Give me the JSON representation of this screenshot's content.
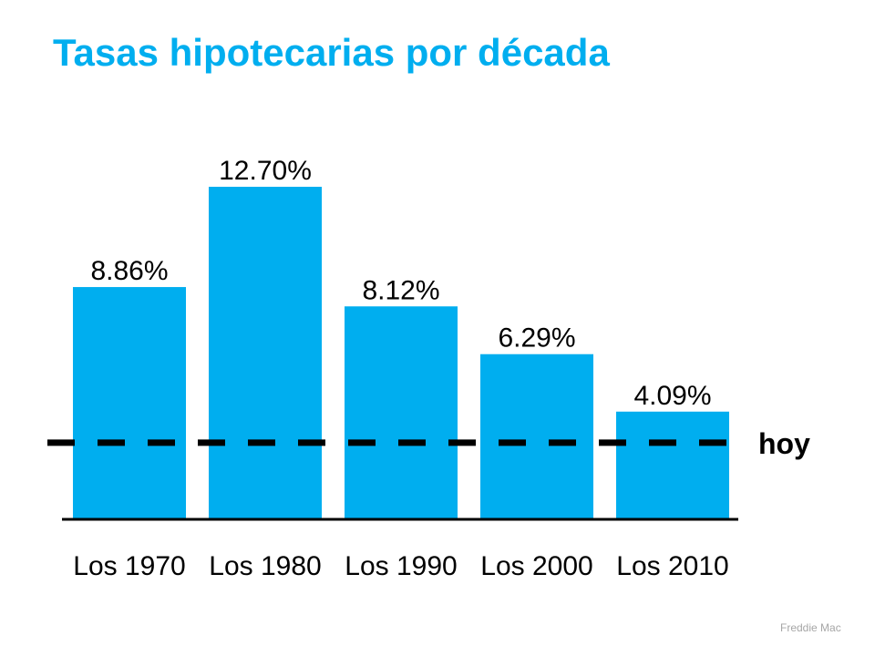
{
  "title": "Tasas hipotecarias por década",
  "source": "Freddie Mac",
  "chart_data": {
    "type": "bar",
    "title": "Tasas hipotecarias por década",
    "categories": [
      "Los 1970",
      "Los 1980",
      "Los 1990",
      "Los 2000",
      "Los 2010"
    ],
    "values": [
      8.86,
      12.7,
      8.12,
      6.29,
      4.09
    ],
    "data_labels": [
      "8.86%",
      "12.70%",
      "8.12%",
      "6.29%",
      "4.09%"
    ],
    "ylim": [
      0,
      14
    ],
    "grid": false,
    "reference_line": {
      "label": "hoy",
      "value": 2.9,
      "style": "dashed",
      "color": "#000000"
    },
    "colors": {
      "bar": "#00aeef",
      "title": "#00aeef",
      "text": "#000000"
    }
  }
}
